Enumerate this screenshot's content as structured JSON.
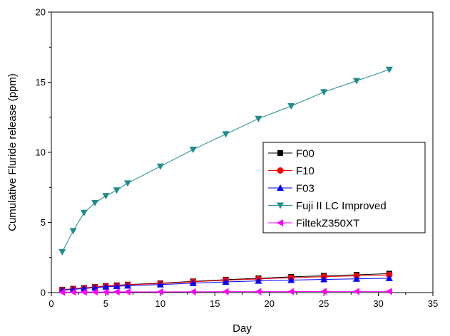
{
  "chart_data": {
    "type": "line",
    "title": "",
    "xlabel": "Day",
    "ylabel": "Cumulative Fluride release (ppm)",
    "xlim": [
      0,
      35
    ],
    "ylim": [
      0,
      20
    ],
    "x_ticks": [
      0,
      5,
      10,
      15,
      20,
      25,
      30,
      35
    ],
    "y_ticks": [
      0,
      5,
      10,
      15,
      20
    ],
    "grid": false,
    "legend_position": "center-right",
    "x": [
      1,
      2,
      3,
      4,
      5,
      6,
      7,
      10,
      13,
      16,
      19,
      22,
      25,
      28,
      31
    ],
    "series": [
      {
        "name": "F00",
        "color": "#000000",
        "marker": "square",
        "values": [
          0.2,
          0.27,
          0.33,
          0.4,
          0.47,
          0.52,
          0.57,
          0.67,
          0.8,
          0.92,
          1.02,
          1.12,
          1.2,
          1.27,
          1.35
        ]
      },
      {
        "name": "F10",
        "color": "#ff0000",
        "marker": "circle",
        "values": [
          0.19,
          0.26,
          0.32,
          0.39,
          0.45,
          0.5,
          0.55,
          0.64,
          0.77,
          0.88,
          0.97,
          1.06,
          1.13,
          1.19,
          1.26
        ]
      },
      {
        "name": "F03",
        "color": "#0000ff",
        "marker": "triangle-up",
        "values": [
          0.17,
          0.23,
          0.29,
          0.35,
          0.41,
          0.45,
          0.49,
          0.57,
          0.67,
          0.76,
          0.83,
          0.89,
          0.94,
          0.98,
          1.02
        ]
      },
      {
        "name": "Fuji II LC Improved",
        "color": "#1f8c8c",
        "marker": "triangle-down",
        "values": [
          2.9,
          4.4,
          5.7,
          6.4,
          6.9,
          7.3,
          7.8,
          9.0,
          10.2,
          11.3,
          12.4,
          13.3,
          14.3,
          15.1,
          15.9
        ]
      },
      {
        "name": "FiltekZ350XT",
        "color": "#ff00ff",
        "marker": "triangle-left",
        "values": [
          0.02,
          0.03,
          0.03,
          0.04,
          0.04,
          0.05,
          0.05,
          0.06,
          0.06,
          0.07,
          0.07,
          0.07,
          0.08,
          0.08,
          0.08
        ]
      }
    ]
  }
}
